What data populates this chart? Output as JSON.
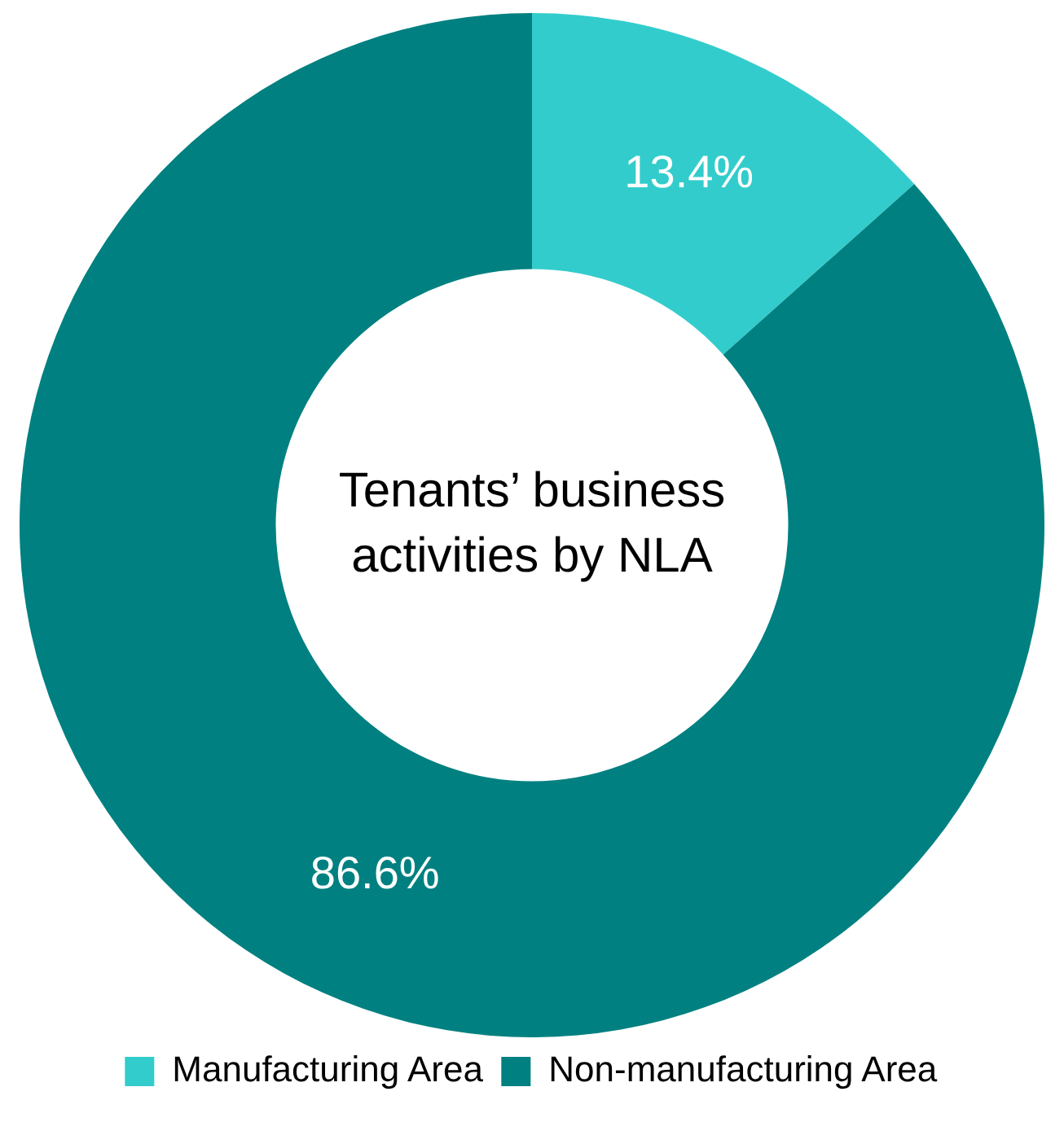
{
  "chart_data": {
    "type": "donut",
    "title": "Tenants’ business activities by NLA",
    "categories": [
      "Manufacturing Area",
      "Non-manufacturing Area"
    ],
    "values": [
      13.4,
      86.6
    ],
    "colors": [
      "#33cccc",
      "#008080"
    ],
    "value_labels": [
      "13.4%",
      "86.6%"
    ],
    "legend": "bottom"
  }
}
